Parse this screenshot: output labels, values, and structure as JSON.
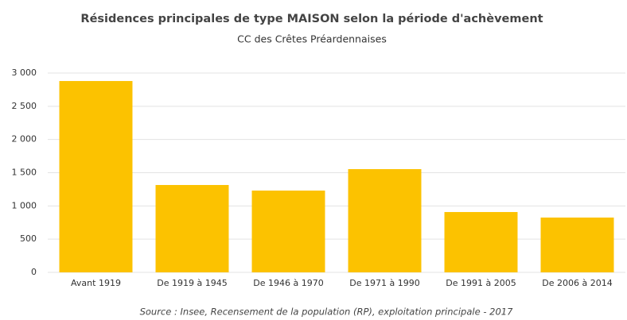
{
  "chart_data": {
    "type": "bar",
    "title": "Résidences principales de type MAISON selon la période d'achèvement",
    "subtitle": "CC des Crêtes Préardennaises",
    "source": "Source : Insee, Recensement de la population (RP), exploitation principale - 2017",
    "categories": [
      "Avant 1919",
      "De 1919 à 1945",
      "De 1946 à 1970",
      "De 1971 à 1990",
      "De 1991 à 2005",
      "De 2006 à 2014"
    ],
    "values": [
      2880,
      1315,
      1231,
      1554,
      908,
      825
    ],
    "color": "#fcc200",
    "ylim": [
      0,
      3000
    ],
    "yticks": [
      0,
      500,
      {
        "value": 1000,
        "label": "1 000"
      },
      {
        "value": 1500,
        "label": "1 500"
      },
      {
        "value": 2000,
        "label": "2 000"
      },
      {
        "value": 2500,
        "label": "2 500"
      },
      {
        "value": 3000,
        "label": "3 000"
      }
    ],
    "grid": true
  }
}
